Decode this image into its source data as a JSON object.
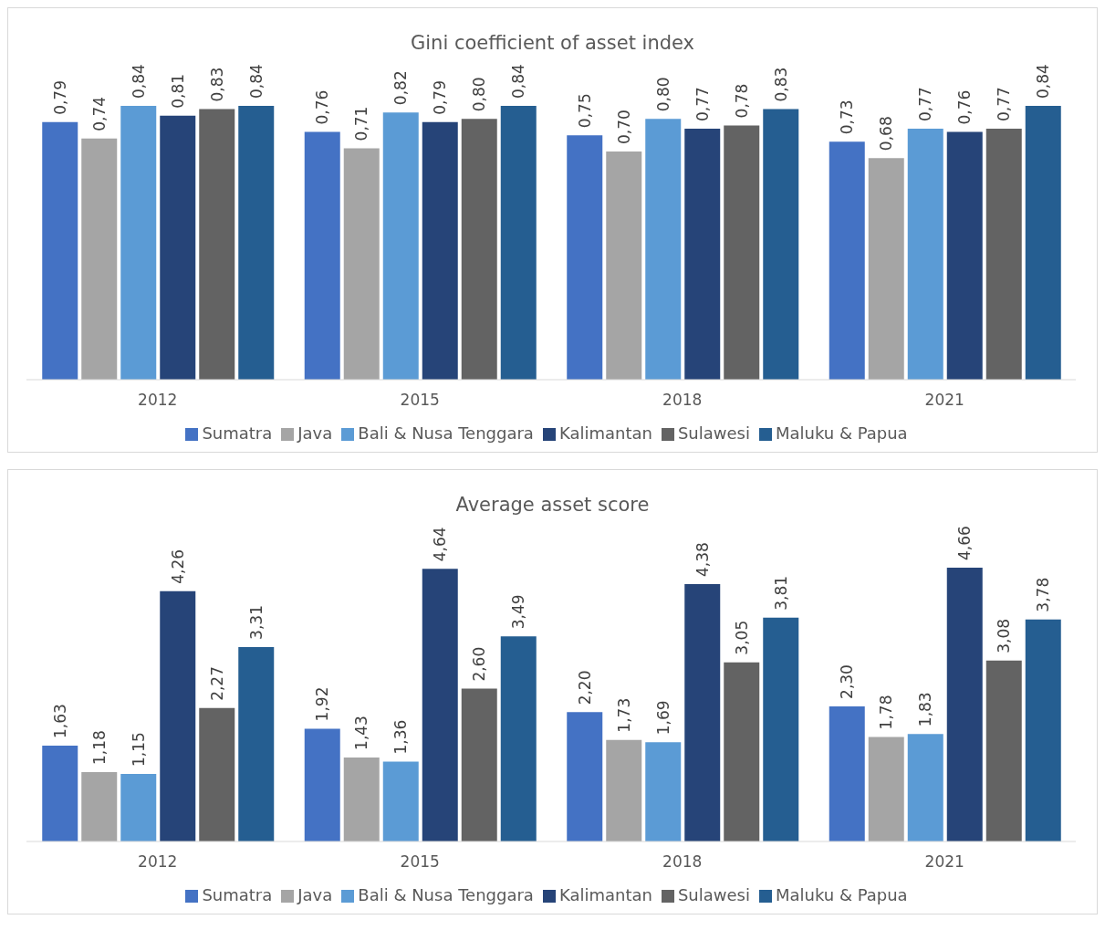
{
  "chart_data": [
    {
      "type": "bar",
      "title": "Gini coefficient of asset index",
      "categories": [
        "2012",
        "2015",
        "2018",
        "2021"
      ],
      "legend": "bottom",
      "series": [
        {
          "name": "Sumatra",
          "color": "#4472c4",
          "values": [
            0.79,
            0.76,
            0.75,
            0.73
          ],
          "value_labels": [
            "0,79",
            "0,76",
            "0,75",
            "0,73"
          ]
        },
        {
          "name": "Java",
          "color": "#a5a5a5",
          "values": [
            0.74,
            0.71,
            0.7,
            0.68
          ],
          "value_labels": [
            "0,74",
            "0,71",
            "0,70",
            "0,68"
          ]
        },
        {
          "name": "Bali & Nusa Tenggara",
          "color": "#5b9bd5",
          "values": [
            0.84,
            0.82,
            0.8,
            0.77
          ],
          "value_labels": [
            "0,84",
            "0,82",
            "0,80",
            "0,77"
          ]
        },
        {
          "name": "Kalimantan",
          "color": "#264478",
          "values": [
            0.81,
            0.79,
            0.77,
            0.76
          ],
          "value_labels": [
            "0,81",
            "0,79",
            "0,77",
            "0,76"
          ]
        },
        {
          "name": "Sulawesi",
          "color": "#636363",
          "values": [
            0.83,
            0.8,
            0.78,
            0.77
          ],
          "value_labels": [
            "0,83",
            "0,80",
            "0,78",
            "0,77"
          ]
        },
        {
          "name": "Maluku & Papua",
          "color": "#255e91",
          "values": [
            0.84,
            0.84,
            0.83,
            0.84
          ],
          "value_labels": [
            "0,84",
            "0,84",
            "0,83",
            "0,84"
          ]
        }
      ]
    },
    {
      "type": "bar",
      "title": "Average asset score",
      "categories": [
        "2012",
        "2015",
        "2018",
        "2021"
      ],
      "legend": "bottom",
      "series": [
        {
          "name": "Sumatra",
          "color": "#4472c4",
          "values": [
            1.63,
            1.92,
            2.2,
            2.3
          ],
          "value_labels": [
            "1,63",
            "1,92",
            "2,20",
            "2,30"
          ]
        },
        {
          "name": "Java",
          "color": "#a5a5a5",
          "values": [
            1.18,
            1.43,
            1.73,
            1.78
          ],
          "value_labels": [
            "1,18",
            "1,43",
            "1,73",
            "1,78"
          ]
        },
        {
          "name": "Bali & Nusa Tenggara",
          "color": "#5b9bd5",
          "values": [
            1.15,
            1.36,
            1.69,
            1.83
          ],
          "value_labels": [
            "1,15",
            "1,36",
            "1,69",
            "1,83"
          ]
        },
        {
          "name": "Kalimantan",
          "color": "#264478",
          "values": [
            4.26,
            4.64,
            4.38,
            4.66
          ],
          "value_labels": [
            "4,26",
            "4,64",
            "4,38",
            "4,66"
          ]
        },
        {
          "name": "Sulawesi",
          "color": "#636363",
          "values": [
            2.27,
            2.6,
            3.05,
            3.08
          ],
          "value_labels": [
            "2,27",
            "2,60",
            "3,05",
            "3,08"
          ]
        },
        {
          "name": "Maluku & Papua",
          "color": "#255e91",
          "values": [
            3.31,
            3.49,
            3.81,
            3.78
          ],
          "value_labels": [
            "3,31",
            "3,49",
            "3,81",
            "3,78"
          ]
        }
      ]
    }
  ]
}
